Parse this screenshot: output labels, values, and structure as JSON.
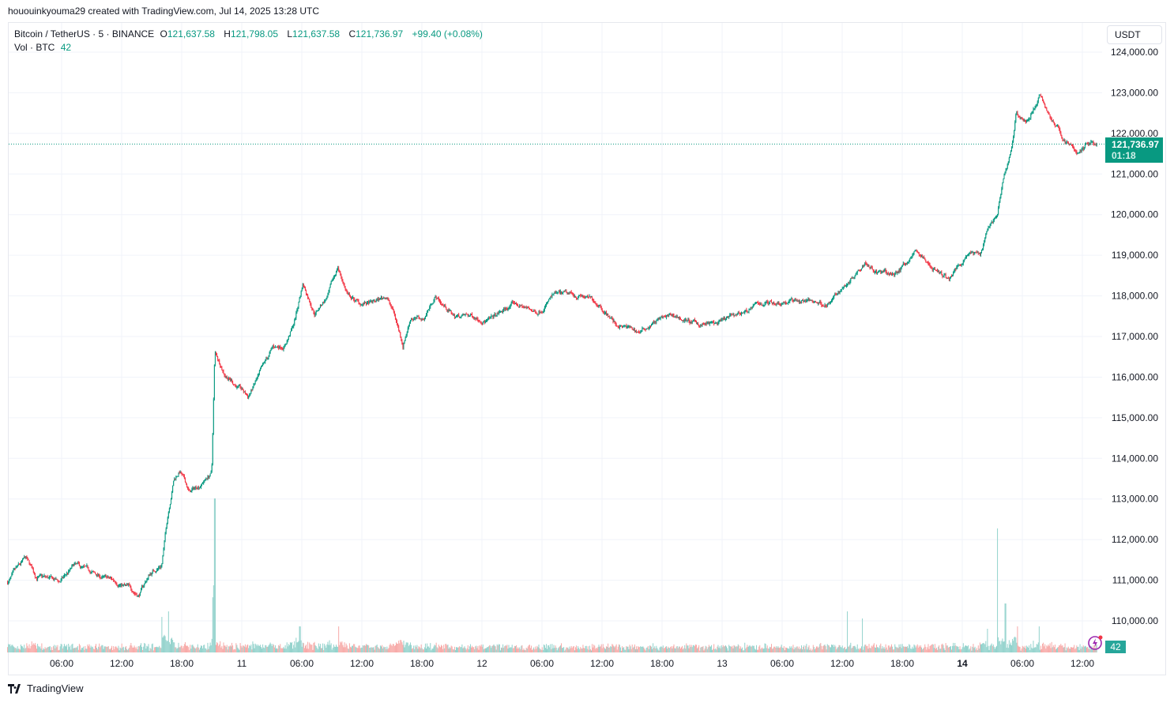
{
  "credit": "hououinkyouma29 created with TradingView.com, Jul 14, 2025 13:28 UTC",
  "legend": {
    "symbol": "Bitcoin / TetherUS · 5 · BINANCE",
    "o_label": "O",
    "o": "121,637.58",
    "h_label": "H",
    "h": "121,798.05",
    "l_label": "L",
    "l": "121,637.58",
    "c_label": "C",
    "c": "121,736.97",
    "change": "+99.40 (+0.08%)",
    "vol_label": "Vol · BTC",
    "vol": "42"
  },
  "price_axis": {
    "unit": "USDT",
    "last_price": "121,736.97",
    "countdown": "01:18",
    "last_volume": "42"
  },
  "footer": {
    "brand": "TradingView"
  },
  "colors": {
    "up": "#089981",
    "down": "#f23645",
    "vol_up": "#92d2cc",
    "vol_down": "#f7a9a7",
    "grid": "#f0f3fa",
    "accent": "#9c27b0"
  },
  "icons": {
    "alert": "lightning-bolt-icon",
    "logo": "tradingview-logo-icon"
  },
  "chart_data": {
    "type": "candlestick",
    "interval": "5m",
    "ylim": [
      109500,
      124500
    ],
    "y_ticks": [
      "110,000.00",
      "111,000.00",
      "112,000.00",
      "113,000.00",
      "114,000.00",
      "115,000.00",
      "116,000.00",
      "117,000.00",
      "118,000.00",
      "119,000.00",
      "120,000.00",
      "121,000.00",
      "122,000.00",
      "123,000.00",
      "124,000.00"
    ],
    "x_ticks": [
      "06:00",
      "12:00",
      "18:00",
      "11",
      "06:00",
      "12:00",
      "18:00",
      "12",
      "06:00",
      "12:00",
      "18:00",
      "13",
      "06:00",
      "12:00",
      "18:00",
      "14",
      "06:00",
      "12:00"
    ],
    "x_tick_hours": [
      6,
      12,
      18,
      24,
      30,
      36,
      42,
      48,
      54,
      60,
      66,
      72,
      78,
      84,
      90,
      96,
      102,
      108
    ],
    "x_start": "Jul 10 ~00:40 UTC",
    "x_end": "Jul 14 13:28 UTC",
    "price_path_hours_since_jul10": [
      0.6,
      2.4,
      3.4,
      5.8,
      7.3,
      10.1,
      11.7,
      13.7,
      14.8,
      16,
      16.6,
      17.2,
      17.8,
      18.8,
      20,
      21,
      21.3,
      22.3,
      23.5,
      24.6,
      25.9,
      27.1,
      28.3,
      29.2,
      30.1,
      31.3,
      32.6,
      33.6,
      34.6,
      35.8,
      37,
      38.5,
      39.3,
      40.1,
      40.9,
      42.1,
      43.3,
      45.2,
      47.2,
      48.8,
      51.2,
      53.5,
      55.1,
      57.9,
      59.8,
      61.4,
      63.8,
      65.4,
      67.3,
      69.3,
      71.7,
      74,
      76.4,
      79.6,
      82.7,
      84.7,
      86.3,
      87.5,
      89.1,
      91.4,
      93,
      94.6,
      96.6,
      97.8,
      98.5,
      99.5,
      100,
      100.9,
      101.4,
      102.5,
      103.7,
      104.8,
      106,
      107.6,
      108.8,
      109.47
    ],
    "price_path_usdt": [
      110950,
      111500,
      111100,
      110950,
      111350,
      111050,
      110950,
      110650,
      111150,
      111400,
      112600,
      113500,
      113700,
      113150,
      113400,
      113650,
      116600,
      116100,
      115800,
      115500,
      116100,
      116700,
      116800,
      117300,
      118300,
      117600,
      118000,
      118700,
      118000,
      117800,
      117800,
      118000,
      117500,
      116800,
      117500,
      117400,
      118000,
      117500,
      117500,
      117400,
      117800,
      117600,
      118000,
      118000,
      117800,
      117300,
      117100,
      117400,
      117500,
      117300,
      117300,
      117600,
      117850,
      117900,
      117800,
      118400,
      118900,
      118600,
      118500,
      119100,
      118700,
      118400,
      119100,
      119000,
      119700,
      120000,
      120700,
      121600,
      122500,
      122300,
      122900,
      122400,
      121900,
      121500,
      121800,
      121736.97
    ],
    "volume_spikes_hours_btc": [
      [
        16,
        450
      ],
      [
        16.7,
        520
      ],
      [
        21.3,
        1950
      ],
      [
        21.2,
        850
      ],
      [
        29.8,
        330
      ],
      [
        33.7,
        330
      ],
      [
        84.5,
        520
      ],
      [
        86,
        430
      ],
      [
        98.5,
        300
      ],
      [
        99.5,
        1570
      ],
      [
        101.5,
        330
      ],
      [
        100.3,
        620
      ],
      [
        103.7,
        330
      ]
    ],
    "last": {
      "open": 121637.58,
      "high": 121798.05,
      "low": 121637.58,
      "close": 121736.97,
      "volume": 42
    }
  }
}
